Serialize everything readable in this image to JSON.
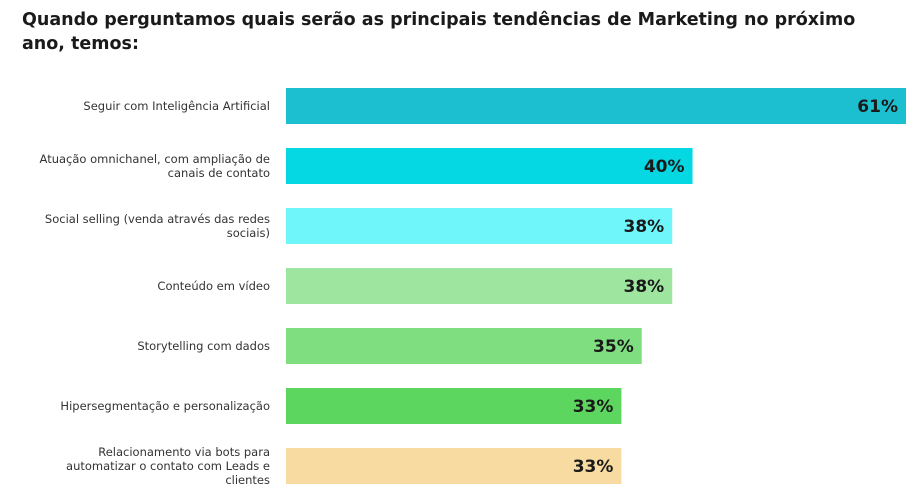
{
  "chart_data": {
    "type": "bar",
    "orientation": "horizontal",
    "title": "Quando perguntamos quais serão as principais tendências de Marketing no próximo ano, temos:",
    "categories": [
      "Seguir com Inteligência Artificial",
      "Atuação omnichanel, com ampliação de canais de contato",
      "Social selling (venda através das redes sociais)",
      "Conteúdo em vídeo",
      "Storytelling com dados",
      "Hipersegmentação e personalização",
      "Relacionamento via bots para automatizar o contato com Leads e clientes"
    ],
    "category_lines": [
      [
        "Seguir com Inteligência Artificial"
      ],
      [
        "Atuação omnichanel, com ampliação de",
        "canais de contato"
      ],
      [
        "Social selling (venda através das redes",
        "sociais)"
      ],
      [
        "Conteúdo em vídeo"
      ],
      [
        "Storytelling com dados"
      ],
      [
        "Hipersegmentação e personalização"
      ],
      [
        "Relacionamento via bots para",
        "automatizar o contato com Leads e",
        "clientes"
      ]
    ],
    "values": [
      61,
      40,
      38,
      38,
      35,
      33,
      33
    ],
    "value_labels": [
      "61%",
      "40%",
      "38%",
      "38%",
      "35%",
      "33%",
      "33%"
    ],
    "colors": [
      "#1bbfcf",
      "#05d7e3",
      "#6ff6fb",
      "#9ee6a0",
      "#7fdf80",
      "#5cd65e",
      "#f8dba0"
    ],
    "xlim": [
      0,
      61
    ],
    "grid": false,
    "legend": "none"
  }
}
